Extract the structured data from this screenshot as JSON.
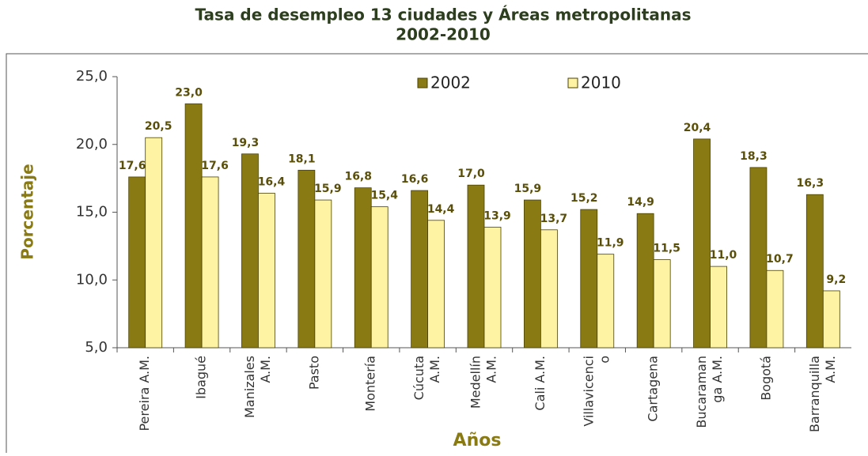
{
  "chart_data": {
    "type": "bar",
    "title": "Tasa de desempleo 13 ciudades y Áreas metropolitanas",
    "subtitle": "2002-2010",
    "x_label": "Años",
    "y_label": "Porcentaje",
    "categories": [
      [
        "Pereira A.M."
      ],
      [
        "Ibagué"
      ],
      [
        "Manizales",
        "A.M."
      ],
      [
        "Pasto"
      ],
      [
        "Montería"
      ],
      [
        "Cúcuta",
        "A.M."
      ],
      [
        "Medellín",
        "A.M."
      ],
      [
        "Cali A.M."
      ],
      [
        "Villavicenci",
        "o"
      ],
      [
        "Cartagena"
      ],
      [
        "Bucaraman",
        "ga A.M."
      ],
      [
        "Bogotá"
      ],
      [
        "Barranquilla",
        "A.M."
      ]
    ],
    "series": [
      {
        "name": "2002",
        "color": "#8a7a14",
        "values": [
          17.6,
          23.0,
          19.3,
          18.1,
          16.8,
          16.6,
          17.0,
          15.9,
          15.2,
          14.9,
          20.4,
          18.3,
          16.3
        ],
        "value_labels": [
          "17,6",
          "23,0",
          "19,3",
          "18,1",
          "16,8",
          "16,6",
          "17,0",
          "15,9",
          "15,2",
          "14,9",
          "20,4",
          "18,3",
          "16,3"
        ]
      },
      {
        "name": "2010",
        "color": "#fdf3a2",
        "values": [
          20.5,
          17.6,
          16.4,
          15.9,
          15.4,
          14.4,
          13.9,
          13.7,
          11.9,
          11.5,
          11.0,
          10.7,
          9.2
        ],
        "value_labels": [
          "20,5",
          "17,6",
          "16,4",
          "15,9",
          "15,4",
          "14,4",
          "13,9",
          "13,7",
          "11,9",
          "11,5",
          "11,0",
          "10,7",
          "9,2"
        ]
      }
    ],
    "ylim": [
      5,
      25
    ],
    "yticks": [
      {
        "value": 5,
        "label": "5,0"
      },
      {
        "value": 10,
        "label": "10,0"
      },
      {
        "value": 15,
        "label": "15,0"
      },
      {
        "value": 20,
        "label": "20,0"
      },
      {
        "value": 25,
        "label": "25,0"
      }
    ],
    "legend": "top"
  }
}
